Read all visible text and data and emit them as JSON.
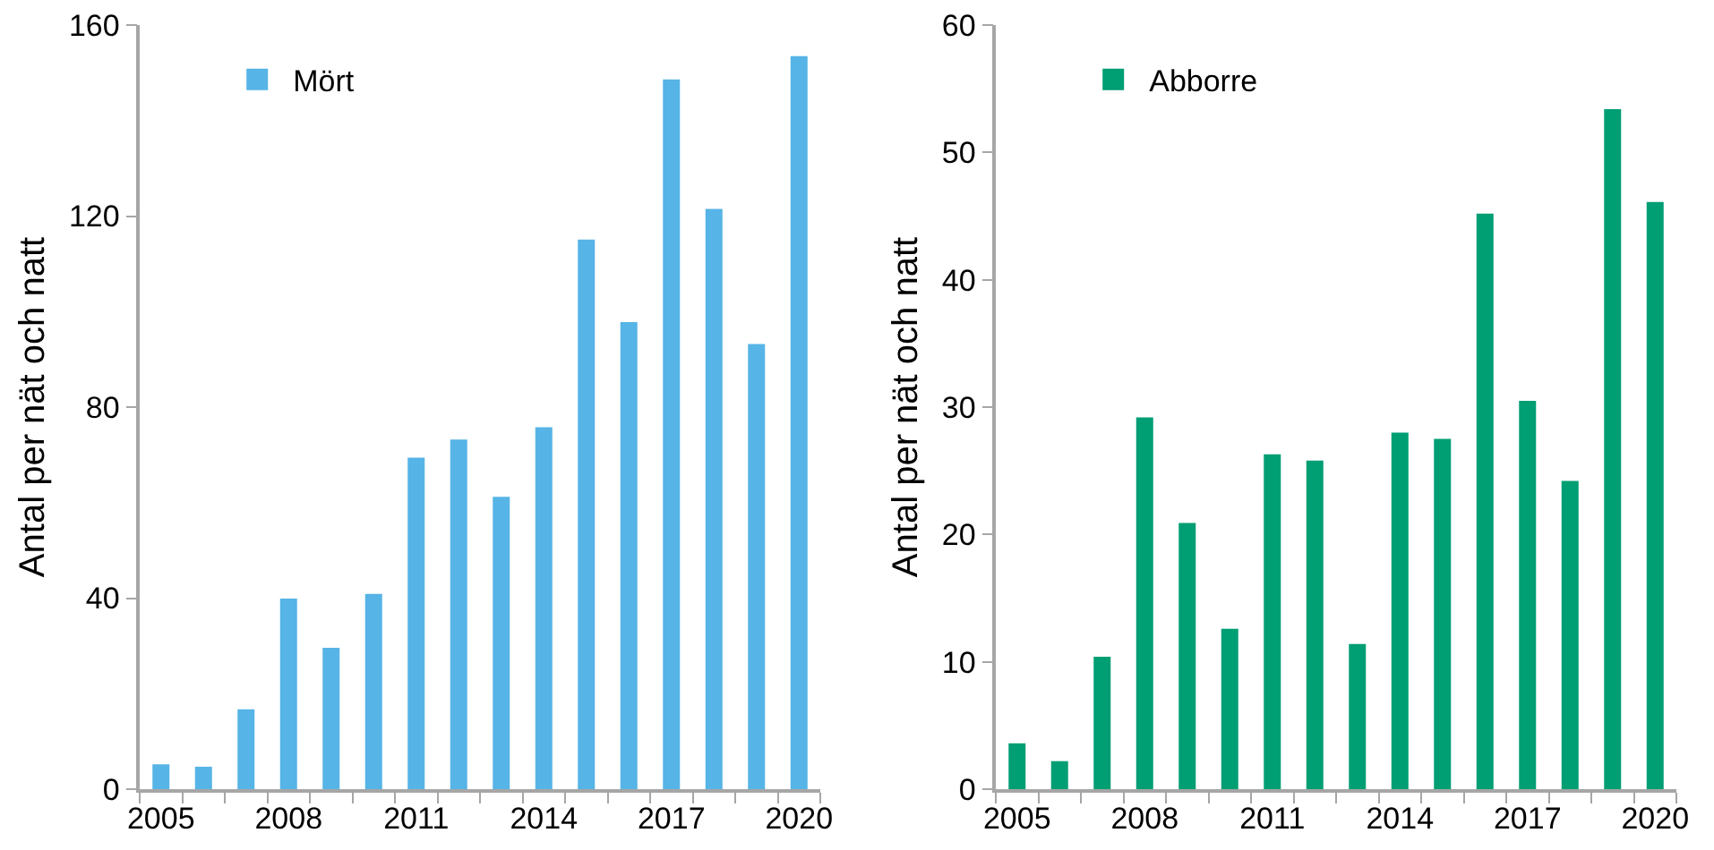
{
  "chart_data": [
    {
      "type": "bar",
      "ylabel": "Antal per nät och natt",
      "categories": [
        "2005",
        null,
        null,
        "2008",
        null,
        null,
        "2011",
        null,
        null,
        "2014",
        null,
        null,
        "2017",
        null,
        null,
        "2020"
      ],
      "series": [
        {
          "name": "Mört",
          "color": "#56b4e6",
          "values": [
            5.2,
            4.7,
            16.7,
            39.9,
            29.6,
            40.9,
            69.4,
            73.2,
            61.2,
            75.8,
            115.1,
            97.8,
            148.6,
            121.5,
            93.2,
            153.5
          ]
        }
      ],
      "ylim": [
        0,
        160
      ],
      "yticks": [
        0,
        40,
        80,
        120,
        160
      ],
      "grid": false,
      "legend": "top left"
    },
    {
      "type": "bar",
      "ylabel": "Antal per nät och natt",
      "categories": [
        "2005",
        null,
        null,
        "2008",
        null,
        null,
        "2011",
        null,
        null,
        "2014",
        null,
        null,
        "2017",
        null,
        null,
        "2020"
      ],
      "series": [
        {
          "name": "Abborre",
          "color": "#009e73",
          "values": [
            3.6,
            2.2,
            10.4,
            29.2,
            20.9,
            12.6,
            26.3,
            25.8,
            11.4,
            28.0,
            27.5,
            45.2,
            30.5,
            24.2,
            53.4,
            46.1
          ]
        }
      ],
      "ylim": [
        0,
        60
      ],
      "yticks": [
        0,
        10,
        20,
        30,
        40,
        50,
        60
      ],
      "grid": false,
      "legend": "top left"
    }
  ]
}
